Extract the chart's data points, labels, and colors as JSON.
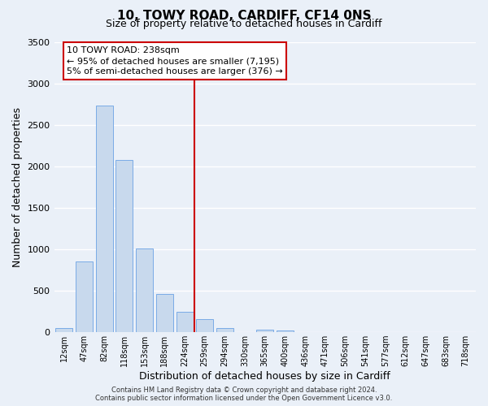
{
  "title": "10, TOWY ROAD, CARDIFF, CF14 0NS",
  "subtitle": "Size of property relative to detached houses in Cardiff",
  "xlabel": "Distribution of detached houses by size in Cardiff",
  "ylabel": "Number of detached properties",
  "bar_color": "#c8d9ed",
  "bar_edgecolor": "#7aabe6",
  "background_color": "#eaf0f8",
  "grid_color": "#ffffff",
  "categories": [
    "12sqm",
    "47sqm",
    "82sqm",
    "118sqm",
    "153sqm",
    "188sqm",
    "224sqm",
    "259sqm",
    "294sqm",
    "330sqm",
    "365sqm",
    "400sqm",
    "436sqm",
    "471sqm",
    "506sqm",
    "541sqm",
    "577sqm",
    "612sqm",
    "647sqm",
    "683sqm",
    "718sqm"
  ],
  "values": [
    55,
    850,
    2730,
    2075,
    1010,
    460,
    245,
    155,
    55,
    0,
    35,
    20,
    0,
    0,
    0,
    0,
    0,
    0,
    0,
    0,
    0
  ],
  "ylim": [
    0,
    3500
  ],
  "yticks": [
    0,
    500,
    1000,
    1500,
    2000,
    2500,
    3000,
    3500
  ],
  "vline_x": 6.5,
  "vline_color": "#cc0000",
  "annotation_title": "10 TOWY ROAD: 238sqm",
  "annotation_line1": "← 95% of detached houses are smaller (7,195)",
  "annotation_line2": "5% of semi-detached houses are larger (376) →",
  "annotation_box_color": "#ffffff",
  "annotation_box_edgecolor": "#cc0000",
  "footer1": "Contains HM Land Registry data © Crown copyright and database right 2024.",
  "footer2": "Contains public sector information licensed under the Open Government Licence v3.0."
}
